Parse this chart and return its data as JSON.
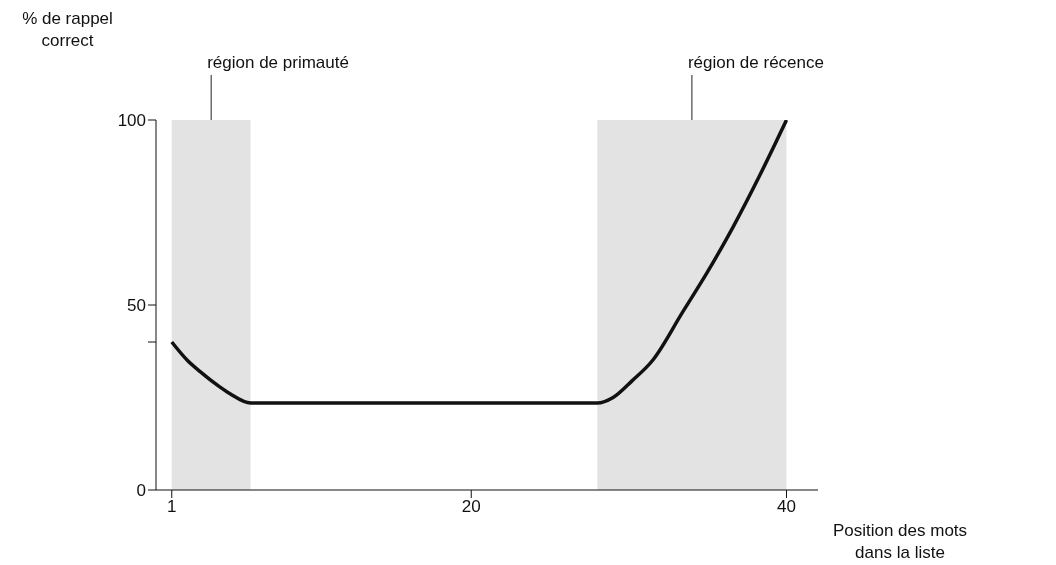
{
  "chart_data": {
    "type": "line",
    "xlabel": "Position des mots dans la liste",
    "ylabel": "% de rappel correct",
    "xlim": [
      0,
      42
    ],
    "ylim": [
      0,
      100
    ],
    "xticks": [
      1,
      20,
      40
    ],
    "yticks": [
      0,
      {
        "value": 40,
        "label": null
      },
      50,
      100
    ],
    "marker": "none",
    "series": [
      {
        "color": "#111111",
        "x": [
          1,
          2,
          2.8,
          4,
          4.7,
          6,
          15,
          28,
          29,
          30.2,
          31.5,
          33.4,
          35,
          36.6,
          38.3,
          40
        ],
        "values": [
          40,
          35,
          32,
          28,
          26,
          23.5,
          23.5,
          23.5,
          25,
          29.5,
          35,
          48,
          59,
          71,
          85,
          100
        ]
      }
    ],
    "bands": [
      {
        "axis": "x",
        "from": 1,
        "to": 6,
        "label": "région de primauté",
        "color": "#e3e3e3"
      },
      {
        "axis": "x",
        "from": 28,
        "to": 40,
        "label": "région de récence",
        "color": "#e3e3e3"
      }
    ]
  }
}
